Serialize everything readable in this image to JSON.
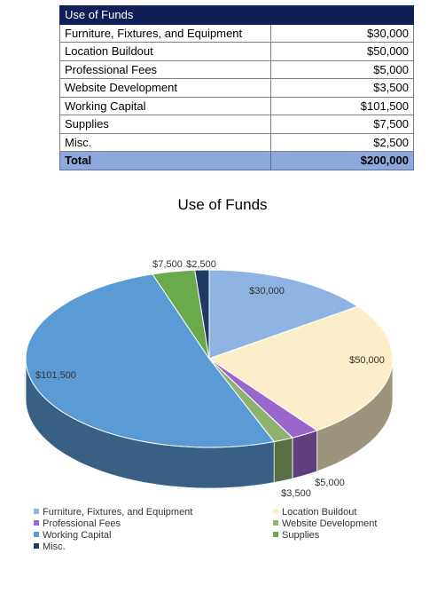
{
  "table": {
    "header": "Use of Funds",
    "rows": [
      {
        "label": "Furniture, Fixtures, and Equipment",
        "amount": "$30,000"
      },
      {
        "label": "Location Buildout",
        "amount": "$50,000"
      },
      {
        "label": "Professional Fees",
        "amount": "$5,000"
      },
      {
        "label": "Website Development",
        "amount": "$3,500"
      },
      {
        "label": "Working Capital",
        "amount": "$101,500"
      },
      {
        "label": "Supplies",
        "amount": "$7,500"
      },
      {
        "label": "Misc.",
        "amount": "$2,500"
      }
    ],
    "total": {
      "label": "Total",
      "amount": "$200,000"
    }
  },
  "chart_data": {
    "type": "pie",
    "title": "Use of Funds",
    "categories": [
      "Furniture, Fixtures, and Equipment",
      "Location Buildout",
      "Professional Fees",
      "Website Development",
      "Working Capital",
      "Supplies",
      "Misc."
    ],
    "values": [
      30000,
      50000,
      5000,
      3500,
      101500,
      7500,
      2500
    ],
    "data_labels": [
      "$30,000",
      "$50,000",
      "$5,000",
      "$3,500",
      "$101,500",
      "$7,500",
      "$2,500"
    ],
    "colors": [
      "#8eb4e3",
      "#fbeec8",
      "#9966cc",
      "#8fb36e",
      "#5b9bd5",
      "#6aaa4a",
      "#1f3864"
    ],
    "legend_position": "bottom",
    "style": "3d"
  }
}
